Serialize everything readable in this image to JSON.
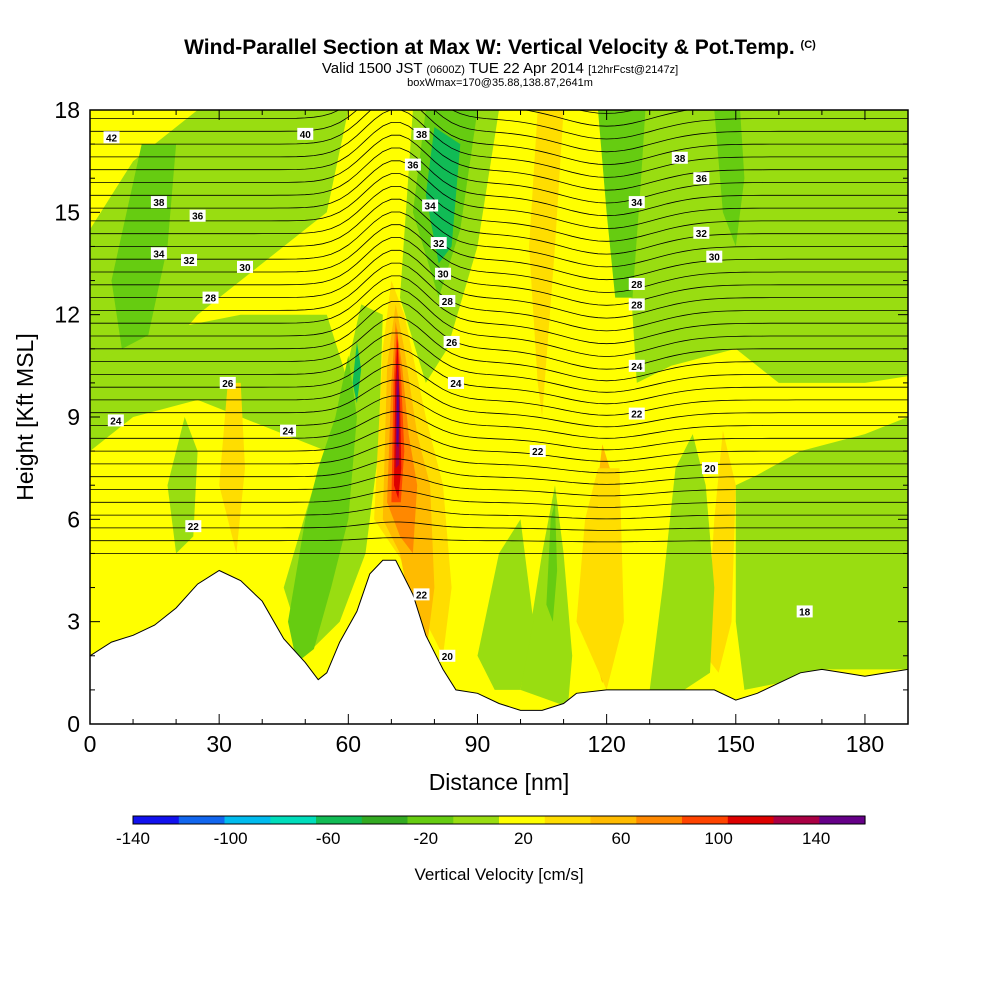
{
  "title": {
    "main": "Wind-Parallel Section at Max W: Vertical Velocity & Pot.Temp.",
    "tag": "(C)"
  },
  "subtitle": {
    "valid": "Valid 1500 JST",
    "utc": "(0600Z)",
    "date": "TUE 22 Apr 2014",
    "fcst": "[12hrFcst@2147z]"
  },
  "boxline": "boxWmax=170@35.88,138.87,2641m",
  "chart_data": {
    "type": "heatmap",
    "xlabel": "Distance [nm]",
    "ylabel": "Height [Kft MSL]",
    "xlim": [
      0,
      190
    ],
    "ylim": [
      0,
      18
    ],
    "xticks": [
      0,
      30,
      60,
      90,
      120,
      150,
      180
    ],
    "yticks": [
      0,
      3,
      6,
      9,
      12,
      15,
      18
    ],
    "colorbar": {
      "label": "Vertical Velocity [cm/s]",
      "range": [
        -140,
        160
      ],
      "step": 20,
      "tick_labels": [
        -140,
        -100,
        -60,
        -20,
        20,
        60,
        100,
        140
      ],
      "colors": [
        "#1111ee",
        "#1166ee",
        "#00bbee",
        "#00ddbb",
        "#11bb55",
        "#33aa22",
        "#66cc11",
        "#99dd11",
        "#ffff00",
        "#ffdd00",
        "#ffbb00",
        "#ff8800",
        "#ff4400",
        "#dd0000",
        "#aa0044",
        "#660088"
      ]
    },
    "terrain": [
      [
        0,
        2.0
      ],
      [
        5,
        2.4
      ],
      [
        10,
        2.6
      ],
      [
        15,
        2.9
      ],
      [
        20,
        3.4
      ],
      [
        25,
        4.1
      ],
      [
        30,
        4.5
      ],
      [
        35,
        4.2
      ],
      [
        40,
        3.6
      ],
      [
        45,
        2.5
      ],
      [
        50,
        1.8
      ],
      [
        53,
        1.3
      ],
      [
        55,
        1.5
      ],
      [
        58,
        2.4
      ],
      [
        62,
        3.3
      ],
      [
        65,
        4.4
      ],
      [
        68,
        4.8
      ],
      [
        71,
        4.8
      ],
      [
        75,
        3.8
      ],
      [
        78,
        2.6
      ],
      [
        82,
        1.6
      ],
      [
        85,
        1.0
      ],
      [
        90,
        0.9
      ],
      [
        95,
        0.6
      ],
      [
        100,
        0.4
      ],
      [
        105,
        0.4
      ],
      [
        110,
        0.6
      ],
      [
        113,
        0.9
      ],
      [
        120,
        1.0
      ],
      [
        130,
        1.0
      ],
      [
        140,
        1.0
      ],
      [
        145,
        1.0
      ],
      [
        150,
        0.7
      ],
      [
        155,
        0.9
      ],
      [
        160,
        1.2
      ],
      [
        165,
        1.5
      ],
      [
        170,
        1.6
      ],
      [
        175,
        1.5
      ],
      [
        180,
        1.4
      ],
      [
        185,
        1.5
      ],
      [
        190,
        1.6
      ]
    ],
    "theta_contours": {
      "unit": "C",
      "levels_labeled": [
        18,
        20,
        22,
        24,
        26,
        28,
        30,
        32,
        34,
        36,
        38,
        40,
        42
      ]
    }
  }
}
